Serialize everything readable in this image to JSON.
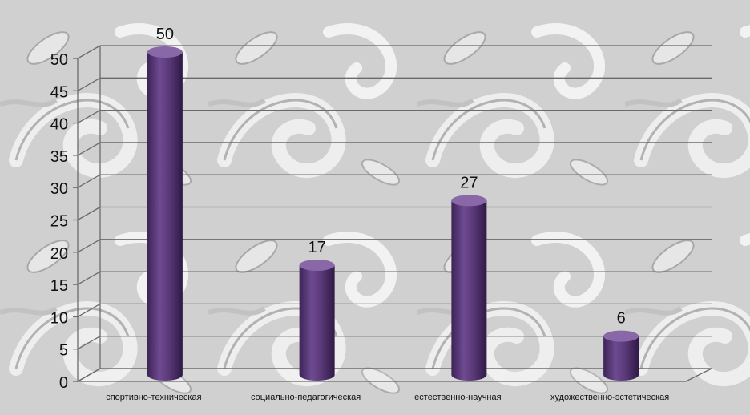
{
  "chart_data": {
    "type": "bar",
    "title": "",
    "xlabel": "",
    "ylabel": "",
    "categories": [
      "спортивно-техническая",
      "социально-педагогическая",
      "естественно-научная",
      "художественно-эстетическая"
    ],
    "values": [
      50,
      17,
      27,
      6
    ],
    "data_labels": [
      "50",
      "17",
      "27",
      "6"
    ],
    "ylim": [
      0,
      50
    ],
    "yticks": [
      "0",
      "5",
      "10",
      "15",
      "20",
      "25",
      "30",
      "35",
      "40",
      "45",
      "50"
    ],
    "grid": true,
    "legend": "none",
    "style": "3d-cylinder",
    "colors": {
      "bar": "#5b3a7a",
      "bar_dark": "#3d2356",
      "bar_light": "#8a68a8",
      "grid": "#6a6a6a",
      "text": "#111111",
      "background": "#d4d4d4"
    }
  }
}
